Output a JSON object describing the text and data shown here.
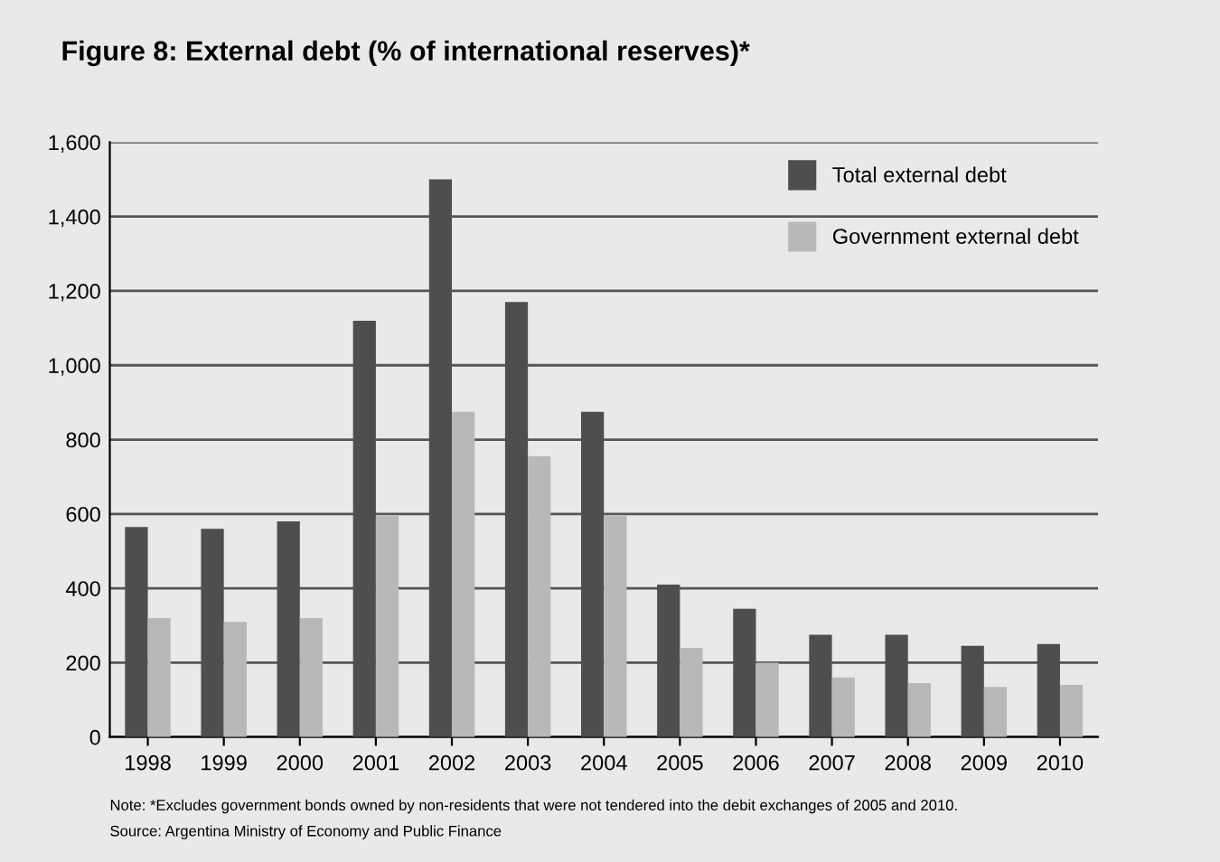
{
  "chart_data": {
    "type": "bar",
    "title": "Figure 8: External debt (% of international reserves)*",
    "categories": [
      "1998",
      "1999",
      "2000",
      "2001",
      "2002",
      "2003",
      "2004",
      "2005",
      "2006",
      "2007",
      "2008",
      "2009",
      "2010"
    ],
    "series": [
      {
        "name": "Total external debt",
        "color": "#4d4e50",
        "values": [
          565,
          560,
          580,
          1120,
          1500,
          1170,
          875,
          410,
          345,
          275,
          275,
          245,
          250
        ]
      },
      {
        "name": "Government external debt",
        "color": "#b8b8ba",
        "values": [
          320,
          310,
          320,
          595,
          875,
          755,
          595,
          240,
          200,
          160,
          145,
          135,
          140
        ]
      }
    ],
    "ylim": [
      0,
      1600
    ],
    "yticks": [
      0,
      {
        "value": 200,
        "label": "200"
      },
      {
        "value": 400,
        "label": "400"
      },
      {
        "value": 600,
        "label": "600"
      },
      {
        "value": 800,
        "label": "800"
      },
      {
        "value": 1000,
        "label": "1,000"
      },
      {
        "value": 1200,
        "label": "1,200"
      },
      {
        "value": 1400,
        "label": "1,400"
      },
      {
        "value": 1600,
        "label": "1,600"
      }
    ],
    "grid": "y",
    "legend": "top right",
    "annotations": [
      "Note: *Excludes government bonds owned by non-residents that were not tendered into the debit exchanges of 2005 and 2010.",
      "Source: Argentina Ministry of Economy and Public Finance"
    ]
  }
}
